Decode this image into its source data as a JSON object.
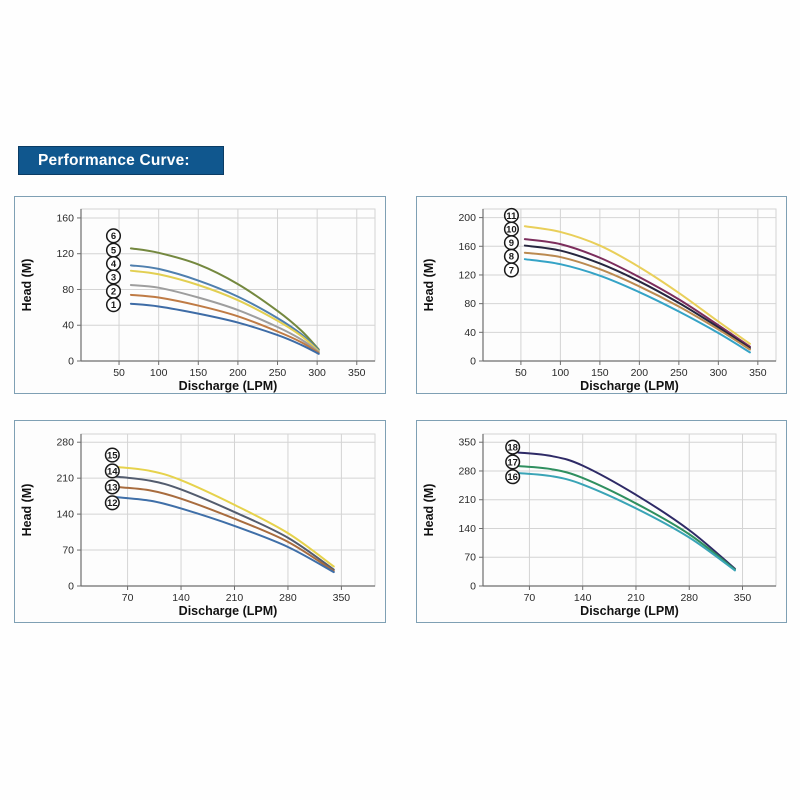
{
  "header": {
    "label": "Performance Curve:",
    "bg_color": "#10578E",
    "border_color": "#0B3C64",
    "text_color": "#FFFFFF"
  },
  "styles": {
    "panel_border": "#7FA0B4",
    "panel_bg": "#FDFDFD",
    "grid_color": "#D4D4D4",
    "axis_color": "#6E6E6E",
    "tick_text_color": "#2B2B2B",
    "label_text_color": "#111111",
    "legend_circle_stroke": "#1A1A1A",
    "legend_circle_fill": "#FFFFFF"
  },
  "chart_data": [
    {
      "type": "line",
      "title": "",
      "xlabel": "Discharge (LPM)",
      "ylabel": "Head (M)",
      "xlim": [
        2,
        373
      ],
      "ylim": [
        0,
        170
      ],
      "x_ticks": [
        50,
        100,
        150,
        200,
        250,
        300,
        350
      ],
      "y_ticks": [
        0,
        40,
        80,
        120,
        160
      ],
      "grid": true,
      "legend_position": "circled numbers stacked at left of curves",
      "legend_x": 43,
      "series": [
        {
          "name": "6",
          "color": "#74883F",
          "label_y": 140,
          "x": [
            65,
            100,
            150,
            200,
            250,
            280,
            302
          ],
          "y": [
            126,
            121,
            108,
            86,
            56,
            34,
            13
          ]
        },
        {
          "name": "5",
          "color": "#4F7FAE",
          "label_y": 124,
          "x": [
            65,
            100,
            150,
            200,
            250,
            280,
            302
          ],
          "y": [
            107,
            103,
            90,
            72,
            48,
            30,
            12
          ]
        },
        {
          "name": "4",
          "color": "#E2CF52",
          "label_y": 109,
          "x": [
            65,
            100,
            150,
            200,
            250,
            280,
            302
          ],
          "y": [
            101,
            97,
            85,
            68,
            45,
            28,
            11
          ]
        },
        {
          "name": "3",
          "color": "#9E9E9E",
          "label_y": 94,
          "x": [
            65,
            100,
            150,
            200,
            250,
            280,
            302
          ],
          "y": [
            85,
            82,
            71,
            57,
            38,
            24,
            10
          ]
        },
        {
          "name": "2",
          "color": "#BF7B45",
          "label_y": 78,
          "x": [
            65,
            100,
            150,
            200,
            250,
            280,
            302
          ],
          "y": [
            74,
            71,
            62,
            50,
            33,
            21,
            9
          ]
        },
        {
          "name": "1",
          "color": "#3E6CA6",
          "label_y": 63,
          "x": [
            65,
            100,
            150,
            200,
            250,
            280,
            302
          ],
          "y": [
            64,
            61,
            53,
            43,
            29,
            18,
            8
          ]
        }
      ]
    },
    {
      "type": "line",
      "title": "",
      "xlabel": "Discharge (LPM)",
      "ylabel": "Head (M)",
      "xlim": [
        2,
        373
      ],
      "ylim": [
        0,
        212
      ],
      "x_ticks": [
        50,
        100,
        150,
        200,
        250,
        300,
        350
      ],
      "y_ticks": [
        0,
        40,
        80,
        120,
        160,
        200
      ],
      "grid": true,
      "legend_position": "circled numbers stacked at left of curves",
      "legend_x": 38,
      "series": [
        {
          "name": "11",
          "color": "#E9CF5A",
          "label_y": 203,
          "x": [
            55,
            100,
            150,
            200,
            250,
            300,
            340
          ],
          "y": [
            188,
            180,
            161,
            131,
            95,
            55,
            24
          ]
        },
        {
          "name": "10",
          "color": "#7C2D5C",
          "label_y": 184,
          "x": [
            55,
            100,
            150,
            200,
            250,
            300,
            340
          ],
          "y": [
            170,
            163,
            144,
            117,
            86,
            50,
            20
          ]
        },
        {
          "name": "9",
          "color": "#26263F",
          "label_y": 165,
          "x": [
            55,
            100,
            150,
            200,
            250,
            300,
            340
          ],
          "y": [
            161,
            154,
            136,
            111,
            81,
            47,
            18
          ]
        },
        {
          "name": "8",
          "color": "#BB8A50",
          "label_y": 146,
          "x": [
            55,
            100,
            150,
            200,
            250,
            300,
            340
          ],
          "y": [
            151,
            145,
            128,
            104,
            76,
            44,
            16
          ]
        },
        {
          "name": "7",
          "color": "#35A3C6",
          "label_y": 127,
          "x": [
            55,
            100,
            150,
            200,
            250,
            300,
            340
          ],
          "y": [
            142,
            135,
            119,
            96,
            69,
            39,
            12
          ]
        }
      ]
    },
    {
      "type": "line",
      "title": "",
      "xlabel": "Discharge (LPM)",
      "ylabel": "Head (M)",
      "xlim": [
        9,
        394
      ],
      "ylim": [
        0,
        296
      ],
      "x_ticks": [
        70,
        140,
        210,
        280,
        350
      ],
      "y_ticks": [
        0,
        70,
        140,
        210,
        280
      ],
      "grid": true,
      "legend_position": "circled numbers stacked at left of curves",
      "legend_x": 50,
      "series": [
        {
          "name": "15",
          "color": "#E6D24C",
          "label_y": 255,
          "x": [
            55,
            100,
            140,
            210,
            280,
            340
          ],
          "y": [
            232,
            224,
            206,
            158,
            103,
            38
          ]
        },
        {
          "name": "14",
          "color": "#535C6E",
          "label_y": 224,
          "x": [
            55,
            100,
            140,
            210,
            280,
            340
          ],
          "y": [
            213,
            205,
            188,
            144,
            94,
            32
          ]
        },
        {
          "name": "13",
          "color": "#A86C3E",
          "label_y": 193,
          "x": [
            55,
            100,
            140,
            210,
            280,
            340
          ],
          "y": [
            193,
            186,
            170,
            131,
            86,
            29
          ]
        },
        {
          "name": "12",
          "color": "#3F6FA8",
          "label_y": 162,
          "x": [
            55,
            100,
            140,
            210,
            280,
            340
          ],
          "y": [
            173,
            166,
            151,
            117,
            76,
            27
          ]
        }
      ]
    },
    {
      "type": "line",
      "title": "",
      "xlabel": "Discharge (LPM)",
      "ylabel": "Head (M)",
      "xlim": [
        9,
        394
      ],
      "ylim": [
        0,
        370
      ],
      "x_ticks": [
        70,
        140,
        210,
        280,
        350
      ],
      "y_ticks": [
        0,
        70,
        140,
        210,
        280,
        350
      ],
      "grid": true,
      "legend_position": "circled numbers stacked at left of curves",
      "legend_x": 48,
      "series": [
        {
          "name": "18",
          "color": "#2E2A66",
          "label_y": 338,
          "x": [
            55,
            100,
            140,
            210,
            280,
            340
          ],
          "y": [
            325,
            316,
            293,
            222,
            136,
            42
          ]
        },
        {
          "name": "17",
          "color": "#2F8F5F",
          "label_y": 302,
          "x": [
            55,
            100,
            140,
            210,
            280,
            340
          ],
          "y": [
            292,
            284,
            263,
            201,
            126,
            40
          ]
        },
        {
          "name": "16",
          "color": "#3AA4B6",
          "label_y": 266,
          "x": [
            55,
            100,
            140,
            210,
            280,
            340
          ],
          "y": [
            275,
            267,
            247,
            189,
            118,
            38
          ]
        }
      ]
    }
  ]
}
